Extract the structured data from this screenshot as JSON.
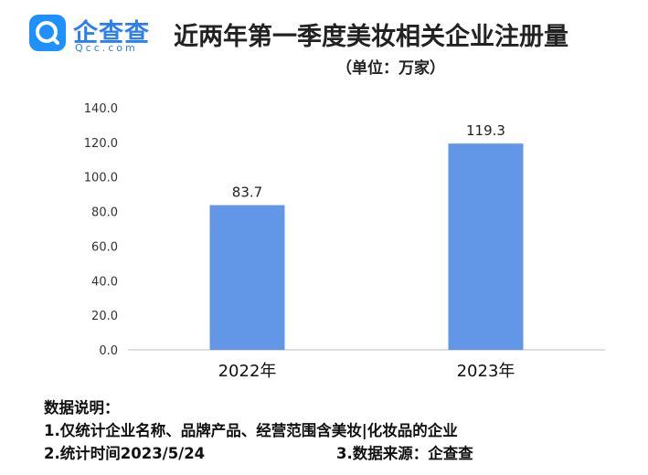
{
  "header": {
    "logo_text": "企查查",
    "logo_sub": "Qcc.com",
    "title": "近两年第一季度美妆相关企业注册量",
    "unit": "（单位：万家）"
  },
  "chart_data": {
    "type": "bar",
    "categories": [
      "2022年",
      "2023年"
    ],
    "values": [
      83.7,
      119.3
    ],
    "value_labels": [
      "83.7",
      "119.3"
    ],
    "title": "近两年第一季度美妆相关企业注册量",
    "ylim": [
      0,
      140
    ],
    "yticks": [
      "0.0",
      "20.0",
      "40.0",
      "60.0",
      "80.0",
      "100.0",
      "120.0",
      "140.0"
    ],
    "bar_color": "#6296e6",
    "grid": false
  },
  "notes": {
    "heading": "数据说明：",
    "line1": "1.仅统计企业名称、品牌产品、经营范围含美妆|化妆品的企业",
    "line2": "2.统计时间2023/5/24",
    "line3": "3.数据来源：企查查"
  },
  "colors": {
    "brand": "#2d7ff0",
    "bar": "#6296e6"
  }
}
